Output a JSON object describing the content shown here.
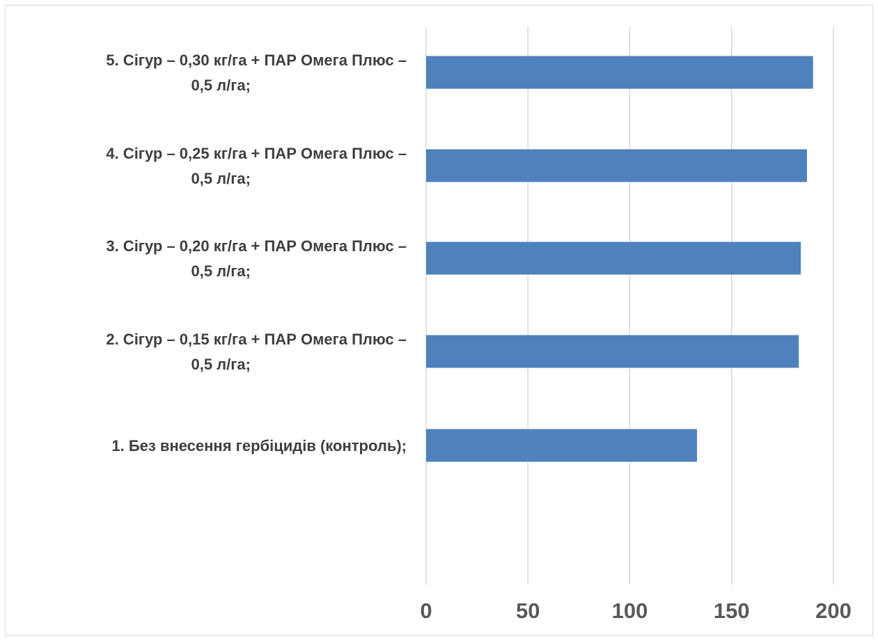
{
  "chart_data": {
    "type": "bar",
    "orientation": "horizontal",
    "categories": [
      "1. Без внесення гербіцидів (контроль);",
      "2. Сігур – 0,15 кг/га + ПАР Омега Плюс  – 0,5 л/га;",
      "3. Сігур – 0,20 кг/га + ПАР Омега Плюс  – 0,5 л/га;",
      "4. Сігур – 0,25 кг/га + ПАР Омега Плюс  – 0,5 л/га;",
      "5. Сігур – 0,30 кг/га + ПАР Омега Плюс  – 0,5 л/га;"
    ],
    "category_lines": [
      [
        "1. Без внесення гербіцидів (контроль);"
      ],
      [
        "2. Сігур – 0,15 кг/га + ПАР Омега Плюс  –",
        "0,5 л/га;"
      ],
      [
        "3. Сігур – 0,20 кг/га + ПАР Омега Плюс  –",
        "0,5 л/га;"
      ],
      [
        "4. Сігур – 0,25 кг/га + ПАР Омега Плюс  –",
        "0,5 л/га;"
      ],
      [
        "5. Сігур – 0,30 кг/га + ПАР Омега Плюс  –",
        "0,5 л/га;"
      ]
    ],
    "values": [
      133,
      183,
      184,
      187,
      190
    ],
    "xlim": [
      0,
      200
    ],
    "xticks": [
      0,
      50,
      100,
      150,
      200
    ],
    "title": "",
    "xlabel": "",
    "ylabel": "",
    "grid": "vertical",
    "legend": "none",
    "bar_color": "#4f81bd",
    "grid_color": "#d9d9d9"
  }
}
